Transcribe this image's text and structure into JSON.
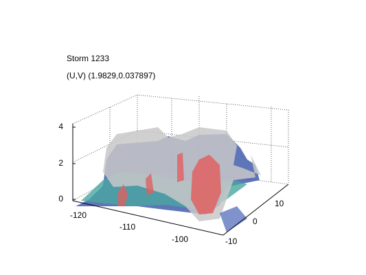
{
  "header": {
    "title": "Storm 1233",
    "subtitle": "(U,V) (1.9829,0.037897)"
  },
  "axes": {
    "z_ticks": [
      0,
      2,
      4
    ],
    "x_ticks": [
      -120,
      -110,
      -100
    ],
    "y_ticks": [
      -10,
      0,
      10
    ]
  }
}
